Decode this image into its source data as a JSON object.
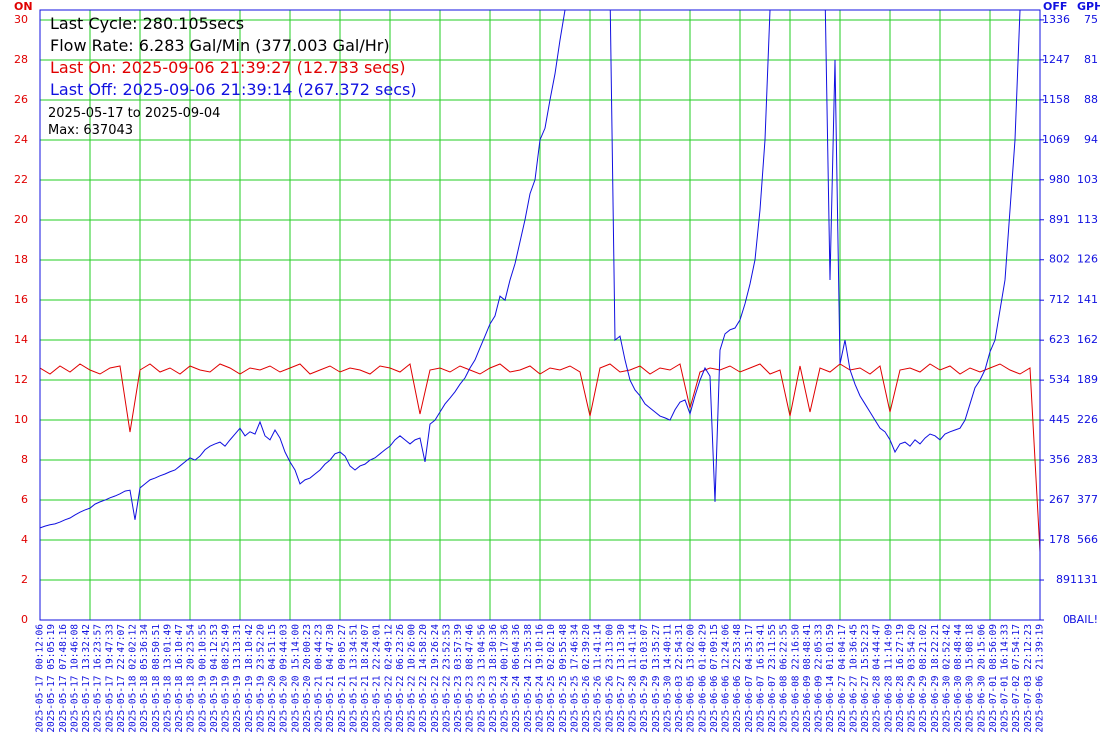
{
  "chart_data": {
    "type": "line",
    "annotations": [
      {
        "text": "Last Cycle: 280.105secs",
        "color": "#000000"
      },
      {
        "text": "Flow Rate: 6.283 Gal/Min (377.003 Gal/Hr)",
        "color": "#000000"
      },
      {
        "text": "Last On: 2025-09-06 21:39:27 (12.733 secs)",
        "color": "#e00000"
      },
      {
        "text": "Last Off: 2025-09-06 21:39:14 (267.372 secs)",
        "color": "#1010e0"
      }
    ],
    "notes": [
      "2025-05-17 to 2025-09-04",
      "Max: 637043"
    ],
    "y_label": "ON",
    "y2_label": "OFF",
    "y3_label": "GPH",
    "ylim": [
      0,
      30.5
    ],
    "yticks": [
      0,
      2,
      4,
      6,
      8,
      10,
      12,
      14,
      16,
      18,
      20,
      22,
      24,
      26,
      28,
      30
    ],
    "y2lim": [
      0,
      1358
    ],
    "y2ticks": [
      0,
      89,
      178,
      267,
      356,
      445,
      534,
      623,
      712,
      802,
      891,
      980,
      1069,
      1158,
      1247,
      1336
    ],
    "y3ticks": [
      {
        "value": 0,
        "label": "BAIL!"
      },
      {
        "value": 89,
        "label": "1131"
      },
      {
        "value": 178,
        "label": "566"
      },
      {
        "value": 267,
        "label": "377"
      },
      {
        "value": 356,
        "label": "283"
      },
      {
        "value": 445,
        "label": "226"
      },
      {
        "value": 534,
        "label": "189"
      },
      {
        "value": 623,
        "label": "162"
      },
      {
        "value": 712,
        "label": "141"
      },
      {
        "value": 802,
        "label": "126"
      },
      {
        "value": 891,
        "label": "113"
      },
      {
        "value": 980,
        "label": "103"
      },
      {
        "value": 1069,
        "label": "94"
      },
      {
        "value": 1158,
        "label": "88"
      },
      {
        "value": 1247,
        "label": "81"
      },
      {
        "value": 1336,
        "label": "75"
      }
    ],
    "grid": true,
    "y_color": "#e00000",
    "y2_color": "#1010e0",
    "xticks": [
      "2025-05-17 00:12:06",
      "2025-05-17 05:05:19",
      "2025-05-17 07:48:16",
      "2025-05-17 10:46:08",
      "2025-05-17 13:32:42",
      "2025-05-17 16:23:57",
      "2025-05-17 19:47:33",
      "2025-05-17 22:47:07",
      "2025-05-18 02:02:12",
      "2025-05-18 05:36:34",
      "2025-05-18 08:50:51",
      "2025-05-18 13:01:49",
      "2025-05-18 16:10:47",
      "2025-05-18 20:23:54",
      "2025-05-19 00:10:55",
      "2025-05-19 04:12:53",
      "2025-05-19 08:25:49",
      "2025-05-19 13:13:31",
      "2025-05-19 18:10:42",
      "2025-05-19 23:52:20",
      "2025-05-20 04:51:15",
      "2025-05-20 09:44:03",
      "2025-05-20 15:14:00",
      "2025-05-20 20:00:23",
      "2025-05-21 00:44:23",
      "2025-05-21 04:47:30",
      "2025-05-21 09:05:27",
      "2025-05-21 13:34:51",
      "2025-05-21 18:24:07",
      "2025-05-21 22:24:01",
      "2025-05-22 02:49:12",
      "2025-05-22 06:23:26",
      "2025-05-22 10:26:00",
      "2025-05-22 14:58:20",
      "2025-05-22 19:26:24",
      "2025-05-22 23:52:53",
      "2025-05-23 03:57:39",
      "2025-05-23 08:47:46",
      "2025-05-23 13:04:56",
      "2025-05-23 18:30:36",
      "2025-05-24 00:17:36",
      "2025-05-24 06:04:36",
      "2025-05-24 12:35:38",
      "2025-05-24 19:10:16",
      "2025-05-25 02:02:10",
      "2025-05-25 09:55:48",
      "2025-05-25 17:46:34",
      "2025-05-26 02:39:20",
      "2025-05-26 11:41:14",
      "2025-05-26 23:13:00",
      "2025-05-27 13:13:30",
      "2025-05-28 11:41:14",
      "2025-05-29 01:03:07",
      "2025-05-29 13:35:27",
      "2025-05-30 14:40:11",
      "2025-06-03 22:54:31",
      "2025-06-05 13:02:00",
      "2025-06-06 01:40:29",
      "2025-06-06 07:09:15",
      "2025-06-06 12:24:06",
      "2025-06-06 22:53:48",
      "2025-06-07 04:35:17",
      "2025-06-07 16:53:41",
      "2025-06-07 23:11:55",
      "2025-06-08 06:22:55",
      "2025-06-08 22:16:50",
      "2025-06-09 08:48:41",
      "2025-06-09 22:05:33",
      "2025-06-14 01:01:59",
      "2025-06-27 04:04:17",
      "2025-06-27 10:36:45",
      "2025-06-27 15:52:23",
      "2025-06-28 04:44:47",
      "2025-06-28 11:14:09",
      "2025-06-28 16:27:19",
      "2025-06-29 03:54:20",
      "2025-06-29 08:21:02",
      "2025-06-29 18:22:21",
      "2025-06-30 02:52:42",
      "2025-06-30 08:48:44",
      "2025-06-30 15:08:18",
      "2025-06-30 20:15:06",
      "2025-07-01 08:56:09",
      "2025-07-01 16:14:33",
      "2025-07-02 07:54:17",
      "2025-07-03 22:12:23",
      "2025-09-06 21:39:19"
    ],
    "series": [
      {
        "color": "#e00000",
        "values": [
          12.6,
          12.3,
          12.7,
          12.4,
          12.8,
          12.5,
          12.3,
          12.6,
          12.7,
          9.4,
          12.5,
          12.8,
          12.4,
          12.6,
          12.3,
          12.7,
          12.5,
          12.4,
          12.8,
          12.6,
          12.3,
          12.6,
          12.5,
          12.7,
          12.4,
          12.6,
          12.8,
          12.3,
          12.5,
          12.7,
          12.4,
          12.6,
          12.5,
          12.3,
          12.7,
          12.6,
          12.4,
          12.8,
          10.3,
          12.5,
          12.6,
          12.4,
          12.7,
          12.5,
          12.3,
          12.6,
          12.8,
          12.4,
          12.5,
          12.7,
          12.3,
          12.6,
          12.5,
          12.7,
          12.4,
          10.2,
          12.6,
          12.8,
          12.4,
          12.5,
          12.7,
          12.3,
          12.6,
          12.5,
          12.8,
          10.6,
          12.4,
          12.6,
          12.5,
          12.7,
          12.4,
          12.6,
          12.8,
          12.3,
          12.5,
          10.2,
          12.7,
          10.4,
          12.6,
          12.4,
          12.8,
          12.5,
          12.6,
          12.3,
          12.7,
          10.4,
          12.5,
          12.6,
          12.4,
          12.8,
          12.5,
          12.7,
          12.3,
          12.6,
          12.4,
          12.6,
          12.8,
          12.5,
          12.3,
          12.6,
          3.4
        ]
      },
      {
        "color": "#1010e0",
        "axis": "y2",
        "values": [
          205,
          209,
          212,
          214,
          218,
          223,
          227,
          234,
          240,
          245,
          249,
          258,
          263,
          267,
          272,
          276,
          281,
          287,
          289,
          223,
          294,
          303,
          312,
          316,
          321,
          325,
          330,
          334,
          343,
          352,
          361,
          356,
          365,
          379,
          387,
          392,
          396,
          387,
          401,
          414,
          427,
          410,
          419,
          414,
          441,
          410,
          401,
          423,
          405,
          374,
          352,
          334,
          303,
          312,
          316,
          325,
          334,
          347,
          356,
          370,
          374,
          365,
          343,
          334,
          343,
          347,
          356,
          361,
          370,
          379,
          387,
          401,
          410,
          401,
          392,
          401,
          405,
          352,
          436,
          445,
          463,
          481,
          494,
          508,
          525,
          539,
          561,
          579,
          606,
          632,
          659,
          677,
          721,
          712,
          757,
          793,
          842,
          891,
          949,
          980,
          1069,
          1095,
          1158,
          1216,
          1291,
          1358,
          1400,
          1400,
          1400,
          1400,
          1400,
          1400,
          1400,
          1400,
          1400,
          623,
          632,
          579,
          534,
          512,
          499,
          481,
          472,
          463,
          454,
          450,
          445,
          468,
          485,
          490,
          459,
          499,
          534,
          561,
          543,
          263,
          601,
          637,
          646,
          650,
          668,
          704,
          748,
          802,
          913,
          1069,
          1358,
          1400,
          1400,
          1400,
          1400,
          1400,
          1400,
          1400,
          1400,
          1400,
          1400,
          1400,
          757,
          1247,
          570,
          623,
          557,
          525,
          499,
          481,
          463,
          445,
          427,
          419,
          401,
          374,
          392,
          396,
          387,
          401,
          392,
          405,
          414,
          410,
          401,
          414,
          419,
          423,
          427,
          445,
          481,
          517,
          534,
          557,
          597,
          623,
          690,
          757,
          913,
          1069,
          1358,
          1400,
          1400,
          1400,
          1400
        ]
      }
    ]
  }
}
